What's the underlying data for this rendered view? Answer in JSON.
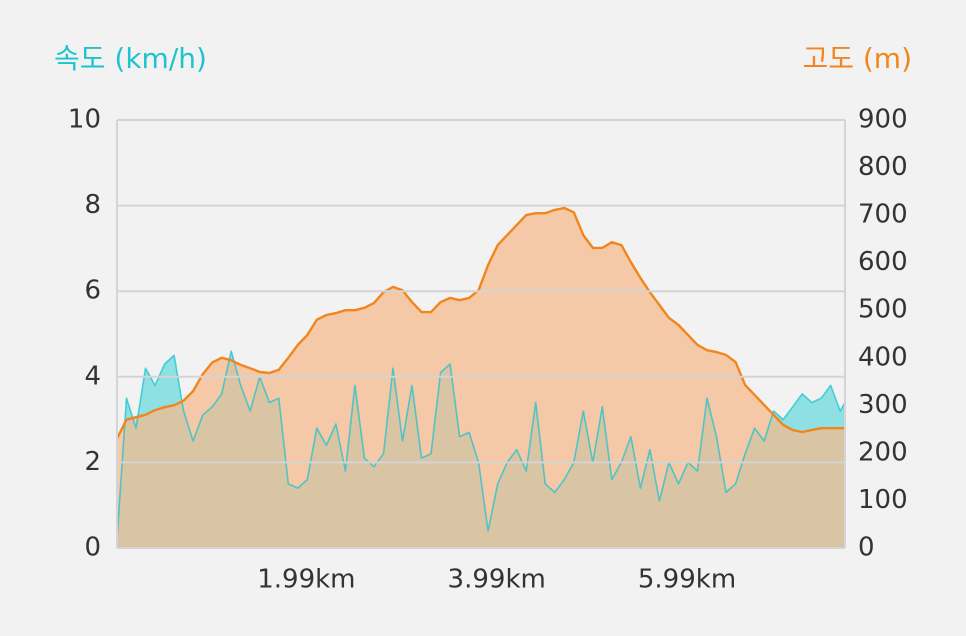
{
  "chart_data": {
    "type": "area",
    "x": [
      0,
      0.1,
      0.2,
      0.3,
      0.4,
      0.5,
      0.6,
      0.7,
      0.8,
      0.9,
      1.0,
      1.1,
      1.2,
      1.3,
      1.4,
      1.5,
      1.6,
      1.7,
      1.8,
      1.9,
      2.0,
      2.1,
      2.2,
      2.3,
      2.4,
      2.5,
      2.6,
      2.7,
      2.8,
      2.9,
      3.0,
      3.1,
      3.2,
      3.3,
      3.4,
      3.5,
      3.6,
      3.7,
      3.8,
      3.9,
      4.0,
      4.1,
      4.2,
      4.3,
      4.4,
      4.5,
      4.6,
      4.7,
      4.8,
      4.9,
      5.0,
      5.1,
      5.2,
      5.3,
      5.4,
      5.5,
      5.6,
      5.7,
      5.8,
      5.9,
      6.0,
      6.1,
      6.2,
      6.3,
      6.4,
      6.5,
      6.6,
      6.7,
      6.8,
      6.9,
      7.0,
      7.1,
      7.2,
      7.3,
      7.4,
      7.5,
      7.6,
      7.65
    ],
    "series": [
      {
        "name": "속도 (km/h)",
        "color": "#1ec3cf",
        "fill": "#8fe0e2",
        "axis": "y",
        "values": [
          0.2,
          3.5,
          2.8,
          4.2,
          3.8,
          4.3,
          4.5,
          3.2,
          2.5,
          3.1,
          3.3,
          3.6,
          4.6,
          3.8,
          3.2,
          4.0,
          3.4,
          3.5,
          1.5,
          1.4,
          1.6,
          2.8,
          2.4,
          2.9,
          1.8,
          3.8,
          2.1,
          1.9,
          2.2,
          4.2,
          2.5,
          3.8,
          2.1,
          2.2,
          4.1,
          4.3,
          2.6,
          2.7,
          2.0,
          0.4,
          1.5,
          2.0,
          2.3,
          1.8,
          3.4,
          1.5,
          1.3,
          1.6,
          2.0,
          3.2,
          2.0,
          3.3,
          1.6,
          2.0,
          2.6,
          1.4,
          2.3,
          1.1,
          2.0,
          1.5,
          2.0,
          1.8,
          3.5,
          2.6,
          1.3,
          1.5,
          2.2,
          2.8,
          2.5,
          3.2,
          3.0,
          3.3,
          3.6,
          3.4,
          3.5,
          3.8,
          3.2,
          3.4
        ]
      },
      {
        "name": "고도 (m)",
        "color": "#f0861c",
        "fill": "#f5b98a",
        "axis": "y2",
        "values": [
          230,
          270,
          275,
          280,
          290,
          296,
          300,
          310,
          330,
          365,
          390,
          400,
          395,
          385,
          378,
          370,
          368,
          375,
          400,
          427,
          448,
          480,
          490,
          494,
          500,
          500,
          505,
          515,
          538,
          549,
          542,
          517,
          496,
          496,
          517,
          526,
          521,
          526,
          542,
          595,
          637,
          658,
          679,
          700,
          704,
          704,
          711,
          715,
          706,
          658,
          631,
          631,
          643,
          637,
          601,
          568,
          538,
          511,
          484,
          469,
          448,
          427,
          416,
          412,
          406,
          391,
          343,
          322,
          301,
          280,
          259,
          248,
          244,
          248,
          252,
          252,
          252,
          252
        ]
      }
    ],
    "xlim": [
      0,
      7.65
    ],
    "xticks": [
      {
        "value": 1.99,
        "label": "1.99km"
      },
      {
        "value": 3.99,
        "label": "3.99km"
      },
      {
        "value": 5.99,
        "label": "5.99km"
      }
    ],
    "ylim": [
      0,
      10
    ],
    "yticks": [
      0,
      2,
      4,
      6,
      8,
      10
    ],
    "y2lim": [
      0,
      900
    ],
    "y2ticks": [
      0,
      100,
      200,
      300,
      400,
      500,
      600,
      700,
      800,
      900
    ],
    "grid": true
  }
}
